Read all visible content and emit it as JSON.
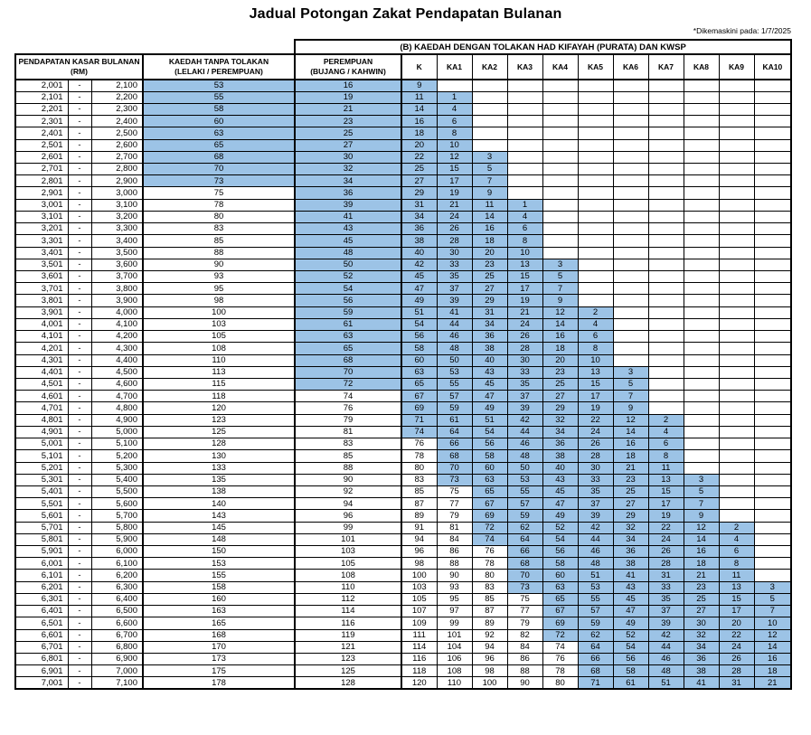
{
  "title": "Jadual Potongan Zakat Pendapatan Bulanan",
  "updated_note": "*Dikemaskini pada: 1/7/2025",
  "group_header": "(B) KAEDAH DENGAN TOLAKAN HAD KIFAYAH (PURATA) DAN KWSP",
  "columns": {
    "income": "PENDAPATAN KASAR BULANAN\n(RM)",
    "no_deduction": "KAEDAH TANPA TOLAKAN\n(LELAKI / PEREMPUAN)",
    "perempuan": "PEREMPUAN\n(BUJANG / KAHWIN)",
    "ka": [
      "K",
      "KA1",
      "KA2",
      "KA3",
      "KA4",
      "KA5",
      "KA6",
      "KA7",
      "KA8",
      "KA9",
      "KA10"
    ]
  },
  "dash": "-",
  "highlight_color": "#9CC3E6",
  "shading": [
    [
      0,
      8
    ],
    [
      0,
      25
    ],
    [
      0,
      29
    ],
    [
      1,
      33
    ],
    [
      6,
      38
    ],
    [
      10,
      42
    ],
    [
      15,
      46
    ],
    [
      19,
      50
    ],
    [
      24,
      50
    ],
    [
      28,
      50
    ],
    [
      33,
      50
    ],
    [
      37,
      50
    ],
    [
      42,
      50
    ]
  ],
  "rows": [
    {
      "lo": "2,001",
      "hi": "2,100",
      "v": [
        53,
        16,
        9
      ]
    },
    {
      "lo": "2,101",
      "hi": "2,200",
      "v": [
        55,
        19,
        11,
        1
      ]
    },
    {
      "lo": "2,201",
      "hi": "2,300",
      "v": [
        58,
        21,
        14,
        4
      ]
    },
    {
      "lo": "2,301",
      "hi": "2,400",
      "v": [
        60,
        23,
        16,
        6
      ]
    },
    {
      "lo": "2,401",
      "hi": "2,500",
      "v": [
        63,
        25,
        18,
        8
      ]
    },
    {
      "lo": "2,501",
      "hi": "2,600",
      "v": [
        65,
        27,
        20,
        10
      ]
    },
    {
      "lo": "2,601",
      "hi": "2,700",
      "v": [
        68,
        30,
        22,
        12,
        3
      ]
    },
    {
      "lo": "2,701",
      "hi": "2,800",
      "v": [
        70,
        32,
        25,
        15,
        5
      ]
    },
    {
      "lo": "2,801",
      "hi": "2,900",
      "v": [
        73,
        34,
        27,
        17,
        7
      ]
    },
    {
      "lo": "2,901",
      "hi": "3,000",
      "v": [
        75,
        36,
        29,
        19,
        9
      ]
    },
    {
      "lo": "3,001",
      "hi": "3,100",
      "v": [
        78,
        39,
        31,
        21,
        11,
        1
      ]
    },
    {
      "lo": "3,101",
      "hi": "3,200",
      "v": [
        80,
        41,
        34,
        24,
        14,
        4
      ]
    },
    {
      "lo": "3,201",
      "hi": "3,300",
      "v": [
        83,
        43,
        36,
        26,
        16,
        6
      ]
    },
    {
      "lo": "3,301",
      "hi": "3,400",
      "v": [
        85,
        45,
        38,
        28,
        18,
        8
      ]
    },
    {
      "lo": "3,401",
      "hi": "3,500",
      "v": [
        88,
        48,
        40,
        30,
        20,
        10
      ]
    },
    {
      "lo": "3,501",
      "hi": "3,600",
      "v": [
        90,
        50,
        42,
        33,
        23,
        13,
        3
      ]
    },
    {
      "lo": "3,601",
      "hi": "3,700",
      "v": [
        93,
        52,
        45,
        35,
        25,
        15,
        5
      ]
    },
    {
      "lo": "3,701",
      "hi": "3,800",
      "v": [
        95,
        54,
        47,
        37,
        27,
        17,
        7
      ]
    },
    {
      "lo": "3,801",
      "hi": "3,900",
      "v": [
        98,
        56,
        49,
        39,
        29,
        19,
        9
      ]
    },
    {
      "lo": "3,901",
      "hi": "4,000",
      "v": [
        100,
        59,
        51,
        41,
        31,
        21,
        12,
        2
      ]
    },
    {
      "lo": "4,001",
      "hi": "4,100",
      "v": [
        103,
        61,
        54,
        44,
        34,
        24,
        14,
        4
      ]
    },
    {
      "lo": "4,101",
      "hi": "4,200",
      "v": [
        105,
        63,
        56,
        46,
        36,
        26,
        16,
        6
      ]
    },
    {
      "lo": "4,201",
      "hi": "4,300",
      "v": [
        108,
        65,
        58,
        48,
        38,
        28,
        18,
        8
      ]
    },
    {
      "lo": "4,301",
      "hi": "4,400",
      "v": [
        110,
        68,
        60,
        50,
        40,
        30,
        20,
        10
      ]
    },
    {
      "lo": "4,401",
      "hi": "4,500",
      "v": [
        113,
        70,
        63,
        53,
        43,
        33,
        23,
        13,
        3
      ]
    },
    {
      "lo": "4,501",
      "hi": "4,600",
      "v": [
        115,
        72,
        65,
        55,
        45,
        35,
        25,
        15,
        5
      ]
    },
    {
      "lo": "4,601",
      "hi": "4,700",
      "v": [
        118,
        74,
        67,
        57,
        47,
        37,
        27,
        17,
        7
      ]
    },
    {
      "lo": "4,701",
      "hi": "4,800",
      "v": [
        120,
        76,
        69,
        59,
        49,
        39,
        29,
        19,
        9
      ]
    },
    {
      "lo": "4,801",
      "hi": "4,900",
      "v": [
        123,
        79,
        71,
        61,
        51,
        42,
        32,
        22,
        12,
        2
      ]
    },
    {
      "lo": "4,901",
      "hi": "5,000",
      "v": [
        125,
        81,
        74,
        64,
        54,
        44,
        34,
        24,
        14,
        4
      ]
    },
    {
      "lo": "5,001",
      "hi": "5,100",
      "v": [
        128,
        83,
        76,
        66,
        56,
        46,
        36,
        26,
        16,
        6
      ]
    },
    {
      "lo": "5,101",
      "hi": "5,200",
      "v": [
        130,
        85,
        78,
        68,
        58,
        48,
        38,
        28,
        18,
        8
      ]
    },
    {
      "lo": "5,201",
      "hi": "5,300",
      "v": [
        133,
        88,
        80,
        70,
        60,
        50,
        40,
        30,
        21,
        11
      ]
    },
    {
      "lo": "5,301",
      "hi": "5,400",
      "v": [
        135,
        90,
        83,
        73,
        63,
        53,
        43,
        33,
        23,
        13,
        3
      ]
    },
    {
      "lo": "5,401",
      "hi": "5,500",
      "v": [
        138,
        92,
        85,
        75,
        65,
        55,
        45,
        35,
        25,
        15,
        5
      ]
    },
    {
      "lo": "5,501",
      "hi": "5,600",
      "v": [
        140,
        94,
        87,
        77,
        67,
        57,
        47,
        37,
        27,
        17,
        7
      ]
    },
    {
      "lo": "5,601",
      "hi": "5,700",
      "v": [
        143,
        96,
        89,
        79,
        69,
        59,
        49,
        39,
        29,
        19,
        9
      ]
    },
    {
      "lo": "5,701",
      "hi": "5,800",
      "v": [
        145,
        99,
        91,
        81,
        72,
        62,
        52,
        42,
        32,
        22,
        12,
        2
      ]
    },
    {
      "lo": "5,801",
      "hi": "5,900",
      "v": [
        148,
        101,
        94,
        84,
        74,
        64,
        54,
        44,
        34,
        24,
        14,
        4
      ]
    },
    {
      "lo": "5,901",
      "hi": "6,000",
      "v": [
        150,
        103,
        96,
        86,
        76,
        66,
        56,
        46,
        36,
        26,
        16,
        6
      ]
    },
    {
      "lo": "6,001",
      "hi": "6,100",
      "v": [
        153,
        105,
        98,
        88,
        78,
        68,
        58,
        48,
        38,
        28,
        18,
        8
      ]
    },
    {
      "lo": "6,101",
      "hi": "6,200",
      "v": [
        155,
        108,
        100,
        90,
        80,
        70,
        60,
        51,
        41,
        31,
        21,
        11
      ]
    },
    {
      "lo": "6,201",
      "hi": "6,300",
      "v": [
        158,
        110,
        103,
        93,
        83,
        73,
        63,
        53,
        43,
        33,
        23,
        13,
        3
      ]
    },
    {
      "lo": "6,301",
      "hi": "6,400",
      "v": [
        160,
        112,
        105,
        95,
        85,
        75,
        65,
        55,
        45,
        35,
        25,
        15,
        5
      ]
    },
    {
      "lo": "6,401",
      "hi": "6,500",
      "v": [
        163,
        114,
        107,
        97,
        87,
        77,
        67,
        57,
        47,
        37,
        27,
        17,
        7
      ]
    },
    {
      "lo": "6,501",
      "hi": "6,600",
      "v": [
        165,
        116,
        109,
        99,
        89,
        79,
        69,
        59,
        49,
        39,
        30,
        20,
        10
      ]
    },
    {
      "lo": "6,601",
      "hi": "6,700",
      "v": [
        168,
        119,
        111,
        101,
        92,
        82,
        72,
        62,
        52,
        42,
        32,
        22,
        12
      ]
    },
    {
      "lo": "6,701",
      "hi": "6,800",
      "v": [
        170,
        121,
        114,
        104,
        94,
        84,
        74,
        64,
        54,
        44,
        34,
        24,
        14
      ]
    },
    {
      "lo": "6,801",
      "hi": "6,900",
      "v": [
        173,
        123,
        116,
        106,
        96,
        86,
        76,
        66,
        56,
        46,
        36,
        26,
        16
      ]
    },
    {
      "lo": "6,901",
      "hi": "7,000",
      "v": [
        175,
        125,
        118,
        108,
        98,
        88,
        78,
        68,
        58,
        48,
        38,
        28,
        18
      ]
    },
    {
      "lo": "7,001",
      "hi": "7,100",
      "v": [
        178,
        128,
        120,
        110,
        100,
        90,
        80,
        71,
        61,
        51,
        41,
        31,
        21
      ]
    }
  ]
}
